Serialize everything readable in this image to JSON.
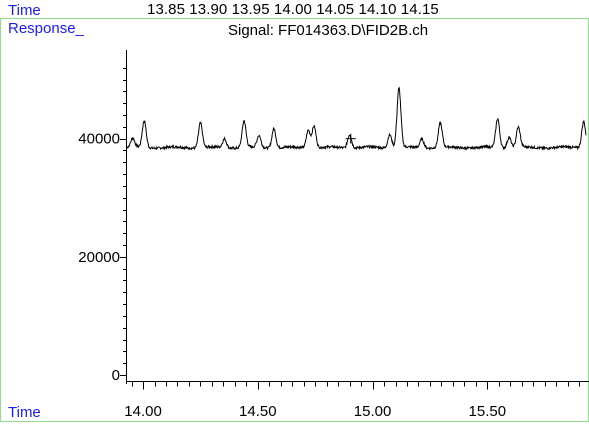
{
  "header": {
    "time_label": "Time",
    "time_values": "13.85 13.90 13.95 14.00 14.05 14.10 14.15",
    "response_label": "Response_",
    "signal_title": "Signal: FF014363.D\\FID2B.ch",
    "time_footer_label": "Time"
  },
  "colors": {
    "label_blue": "#1a1aff",
    "frame_green": "#8fe08f",
    "axis": "#000000",
    "trace": "#000000"
  },
  "chart_data": {
    "type": "line",
    "title": "Signal: FF014363.D\\FID2B.ch",
    "xlabel": "Time",
    "ylabel": "Response_",
    "xlim": [
      13.93,
      15.93
    ],
    "ylim": [
      -500,
      55000
    ],
    "x_ticks": [
      14.0,
      14.5,
      15.0,
      15.5
    ],
    "x_tick_labels": [
      "14.00",
      "14.50",
      "15.00",
      "15.50"
    ],
    "y_ticks": [
      0,
      20000,
      40000
    ],
    "y_tick_labels": [
      "0",
      "20000",
      "40000"
    ],
    "grid": false,
    "baseline": 38500,
    "peaks": [
      {
        "x": 13.955,
        "y": 40000
      },
      {
        "x": 14.005,
        "y": 43000
      },
      {
        "x": 14.25,
        "y": 42700
      },
      {
        "x": 14.355,
        "y": 40000
      },
      {
        "x": 14.44,
        "y": 43000
      },
      {
        "x": 14.505,
        "y": 40500
      },
      {
        "x": 14.57,
        "y": 41800
      },
      {
        "x": 14.72,
        "y": 41500
      },
      {
        "x": 14.745,
        "y": 42200
      },
      {
        "x": 14.9,
        "y": 40800
      },
      {
        "x": 15.075,
        "y": 40800
      },
      {
        "x": 15.115,
        "y": 48500
      },
      {
        "x": 15.215,
        "y": 40000
      },
      {
        "x": 15.295,
        "y": 42600
      },
      {
        "x": 15.545,
        "y": 43400
      },
      {
        "x": 15.595,
        "y": 40300
      },
      {
        "x": 15.635,
        "y": 41900
      },
      {
        "x": 15.92,
        "y": 43000
      }
    ]
  }
}
